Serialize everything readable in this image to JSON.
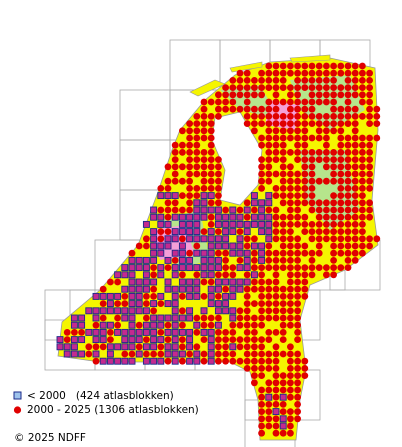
{
  "legend": [
    {
      "label": "< 2000   (424 atlasblokken)"
    },
    {
      "label": "2000 - 2025 (1306 atlasblokken)"
    }
  ],
  "copyright": "© 2025 NDFF"
}
